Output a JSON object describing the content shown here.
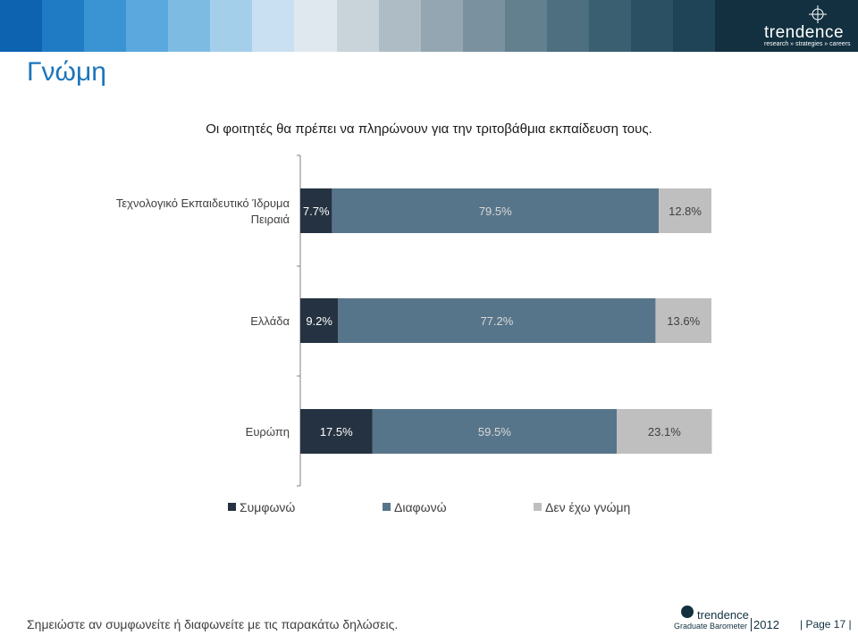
{
  "header": {
    "logo_text": "trendence",
    "logo_tagline": "research » strategies » careers",
    "band_colors": [
      "#0e63b0",
      "#1f7cc4",
      "#3a93d3",
      "#5aa8dd",
      "#7ebbe3",
      "#a4cfeb",
      "#c8e0f1",
      "#dfe8ee",
      "#c8d3da",
      "#aebcc5",
      "#93a6b2",
      "#7a929f",
      "#63808f",
      "#4d6f80",
      "#3a5f71",
      "#2b5064",
      "#1f4357"
    ]
  },
  "page": {
    "title": "Γνώμη"
  },
  "chart_data": {
    "type": "bar",
    "orientation": "horizontal",
    "stacked": true,
    "title": "Οι φοιτητές θα πρέπει να πληρώνουν για την τριτοβάθμια εκπαίδευση τους.",
    "categories": [
      "Τεχνολογικό Εκπαιδευτικό Ίδρυμα Πειραιά",
      "Ελλάδα",
      "Ευρώπη"
    ],
    "series": [
      {
        "name": "Συμφωνώ",
        "values": [
          7.7,
          9.2,
          17.5
        ],
        "labels": [
          "7.7%",
          "9.2%",
          "17.5%"
        ],
        "color": "#253241"
      },
      {
        "name": "Διαφωνώ",
        "values": [
          79.5,
          77.2,
          59.5
        ],
        "labels": [
          "79.5%",
          "77.2%",
          "59.5%"
        ],
        "color": "#57758a"
      },
      {
        "name": "Δεν έχω γνώμη",
        "values": [
          12.8,
          13.6,
          23.1
        ],
        "labels": [
          "12.8%",
          "13.6%",
          "23.1%"
        ],
        "color": "#bfbfbf"
      }
    ],
    "xlim": [
      0,
      100
    ],
    "legend_position": "bottom"
  },
  "footer": {
    "note": "Σημειώστε αν συμφωνείτε ή διαφωνείτε με τις παρακάτω δηλώσεις.",
    "brand_logo": "trendence",
    "brand_sub": "Graduate Barometer",
    "brand_year": "2012",
    "page_label": "| Page 17 |"
  }
}
